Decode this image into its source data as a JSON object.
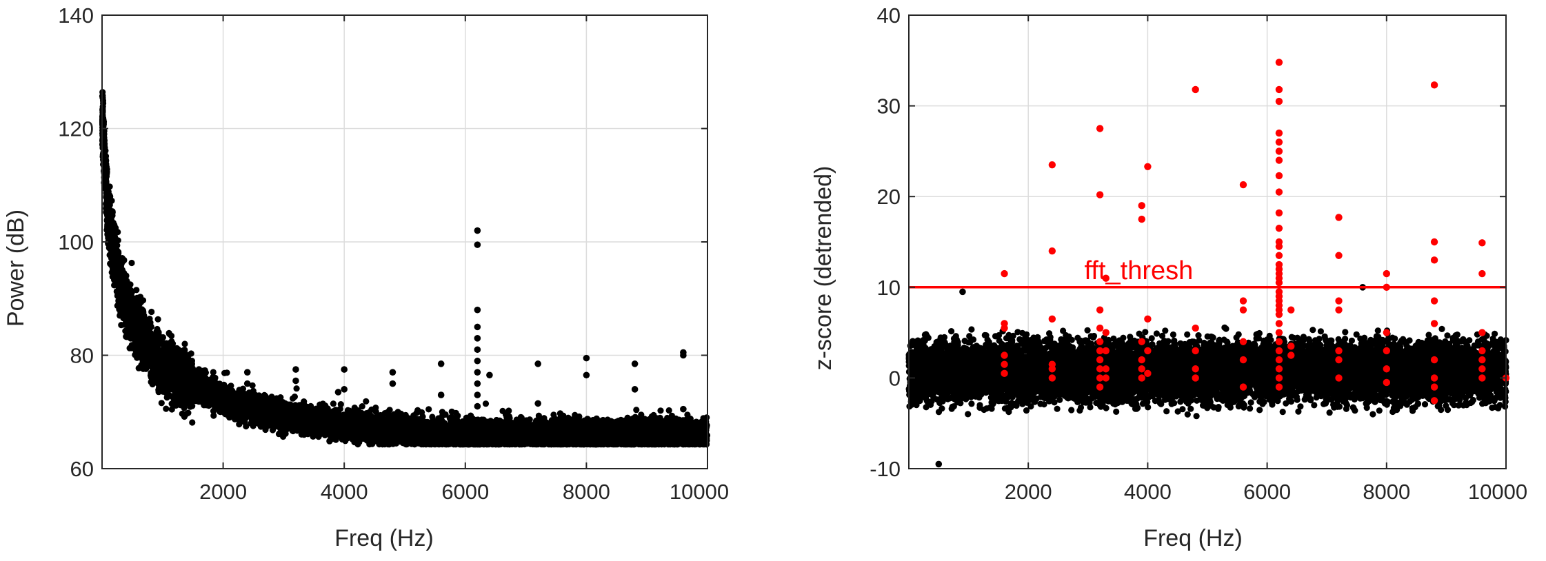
{
  "chart_data": [
    {
      "type": "scatter",
      "xlabel": "Freq (Hz)",
      "ylabel": "Power (dB)",
      "xlim": [
        0,
        10000
      ],
      "ylim": [
        60,
        140
      ],
      "xticks": [
        2000,
        4000,
        6000,
        8000,
        10000
      ],
      "yticks": [
        60,
        80,
        100,
        120,
        140
      ],
      "grid": true,
      "series_color": "#000000",
      "noise_floor_model": {
        "description_points": [
          [
            0,
            122
          ],
          [
            100,
            104
          ],
          [
            300,
            92
          ],
          [
            500,
            86
          ],
          [
            1000,
            78
          ],
          [
            2000,
            72
          ],
          [
            3000,
            69
          ],
          [
            4000,
            67.5
          ],
          [
            5000,
            66.5
          ],
          [
            6000,
            66
          ],
          [
            8000,
            66
          ],
          [
            10000,
            66
          ]
        ],
        "spread_db": [
          -2,
          4
        ]
      },
      "peaks": [
        {
          "x": 1600,
          "y": [
            77.5
          ]
        },
        {
          "x": 2400,
          "y": [
            75,
            77
          ]
        },
        {
          "x": 3200,
          "y": [
            75.5,
            77.5
          ]
        },
        {
          "x": 3900,
          "y": [
            73.5
          ]
        },
        {
          "x": 4000,
          "y": [
            74,
            77.5
          ]
        },
        {
          "x": 4800,
          "y": [
            75,
            77
          ]
        },
        {
          "x": 5600,
          "y": [
            73,
            78.5
          ]
        },
        {
          "x": 6200,
          "y": [
            102,
            99.5,
            88,
            85,
            83,
            81,
            79,
            77,
            75,
            73,
            71
          ]
        },
        {
          "x": 6400,
          "y": [
            76.5
          ]
        },
        {
          "x": 7200,
          "y": [
            71.5,
            78.5
          ]
        },
        {
          "x": 8000,
          "y": [
            76.5,
            79.5
          ]
        },
        {
          "x": 8800,
          "y": [
            74,
            78.5
          ]
        },
        {
          "x": 9600,
          "y": [
            70.5,
            80,
            80.5
          ]
        }
      ]
    },
    {
      "type": "scatter",
      "xlabel": "Freq (Hz)",
      "ylabel": "z-score (detrended)",
      "xlim": [
        0,
        10000
      ],
      "ylim": [
        -10,
        40
      ],
      "xticks": [
        2000,
        4000,
        6000,
        8000,
        10000
      ],
      "yticks": [
        -10,
        0,
        10,
        20,
        30,
        40
      ],
      "grid": true,
      "threshold": {
        "value": 10,
        "label": "fft_thresh",
        "color": "#ff0000"
      },
      "noise_band": {
        "y_range": [
          -4,
          6
        ],
        "color": "#000000"
      },
      "outliers": [
        {
          "x": 500,
          "y": -9.5
        },
        {
          "x": 900,
          "y": 9.5
        },
        {
          "x": 7600,
          "y": 10
        }
      ],
      "highlighted_series": {
        "color": "#ff0000",
        "points": [
          {
            "x": 1600,
            "y": [
              11.5,
              6,
              5.5,
              2.5,
              1.5,
              0.5
            ]
          },
          {
            "x": 2400,
            "y": [
              23.5,
              14,
              6.5,
              1.5,
              1,
              0
            ]
          },
          {
            "x": 3200,
            "y": [
              27.5,
              20.2,
              7.5,
              5.5,
              4,
              3,
              2,
              1,
              0,
              -1
            ]
          },
          {
            "x": 3300,
            "y": [
              11,
              5,
              3,
              1,
              0
            ]
          },
          {
            "x": 3900,
            "y": [
              19,
              17.5,
              4,
              2,
              1,
              0
            ]
          },
          {
            "x": 4000,
            "y": [
              23.3,
              6.5,
              3,
              0.5
            ]
          },
          {
            "x": 4800,
            "y": [
              31.8,
              5.5,
              3,
              1,
              0
            ]
          },
          {
            "x": 5600,
            "y": [
              21.3,
              8.5,
              7.5,
              4,
              2,
              -1
            ]
          },
          {
            "x": 6200,
            "y": [
              34.8,
              31.8,
              30.5,
              27,
              26,
              25,
              24,
              22.3,
              20.5,
              18.2,
              16.5,
              15,
              14.5,
              13.5,
              12.5,
              12,
              11.5,
              11,
              10.5,
              9.5,
              9,
              8.5,
              8,
              7.5,
              7,
              6,
              5,
              4,
              3,
              2,
              1,
              0,
              -1
            ]
          },
          {
            "x": 6400,
            "y": [
              7.5,
              3.5,
              2.5
            ]
          },
          {
            "x": 7200,
            "y": [
              17.7,
              13.5,
              8.5,
              7.5,
              3,
              2,
              0
            ]
          },
          {
            "x": 8000,
            "y": [
              11.5,
              10,
              5,
              3,
              1,
              -0.5
            ]
          },
          {
            "x": 8800,
            "y": [
              32.3,
              15,
              13,
              8.5,
              6,
              2,
              0,
              -1,
              -2.5
            ]
          },
          {
            "x": 9600,
            "y": [
              14.9,
              11.5,
              5,
              3,
              2,
              1,
              0
            ]
          },
          {
            "x": 10000,
            "y": [
              0
            ]
          }
        ]
      }
    }
  ]
}
